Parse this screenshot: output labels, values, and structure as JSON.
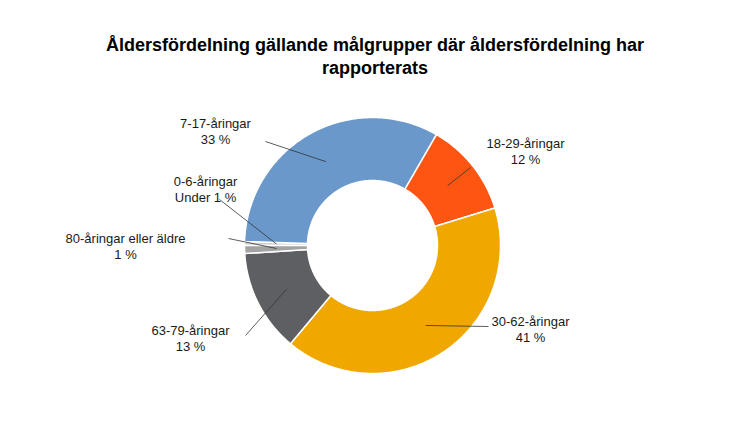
{
  "chart_data": {
    "type": "pie",
    "title": "Åldersfördelning gällande målgrupper där åldersfördelning har rapporterats",
    "categories": [
      "0-6-åringar",
      "7-17-åringar",
      "18-29-åringar",
      "30-62-åringar",
      "63-79-åringar",
      "80-åringar eller äldre"
    ],
    "values": [
      0.5,
      33,
      12,
      41,
      13,
      1
    ],
    "value_labels": [
      "Under 1 %",
      "33 %",
      "12 %",
      "41 %",
      "13 %",
      "1 %"
    ],
    "colors": [
      "#cfcfcf",
      "#6a98cb",
      "#ff5512",
      "#f0a800",
      "#5e5f62",
      "#a3a3a3"
    ],
    "data_labels": true
  }
}
